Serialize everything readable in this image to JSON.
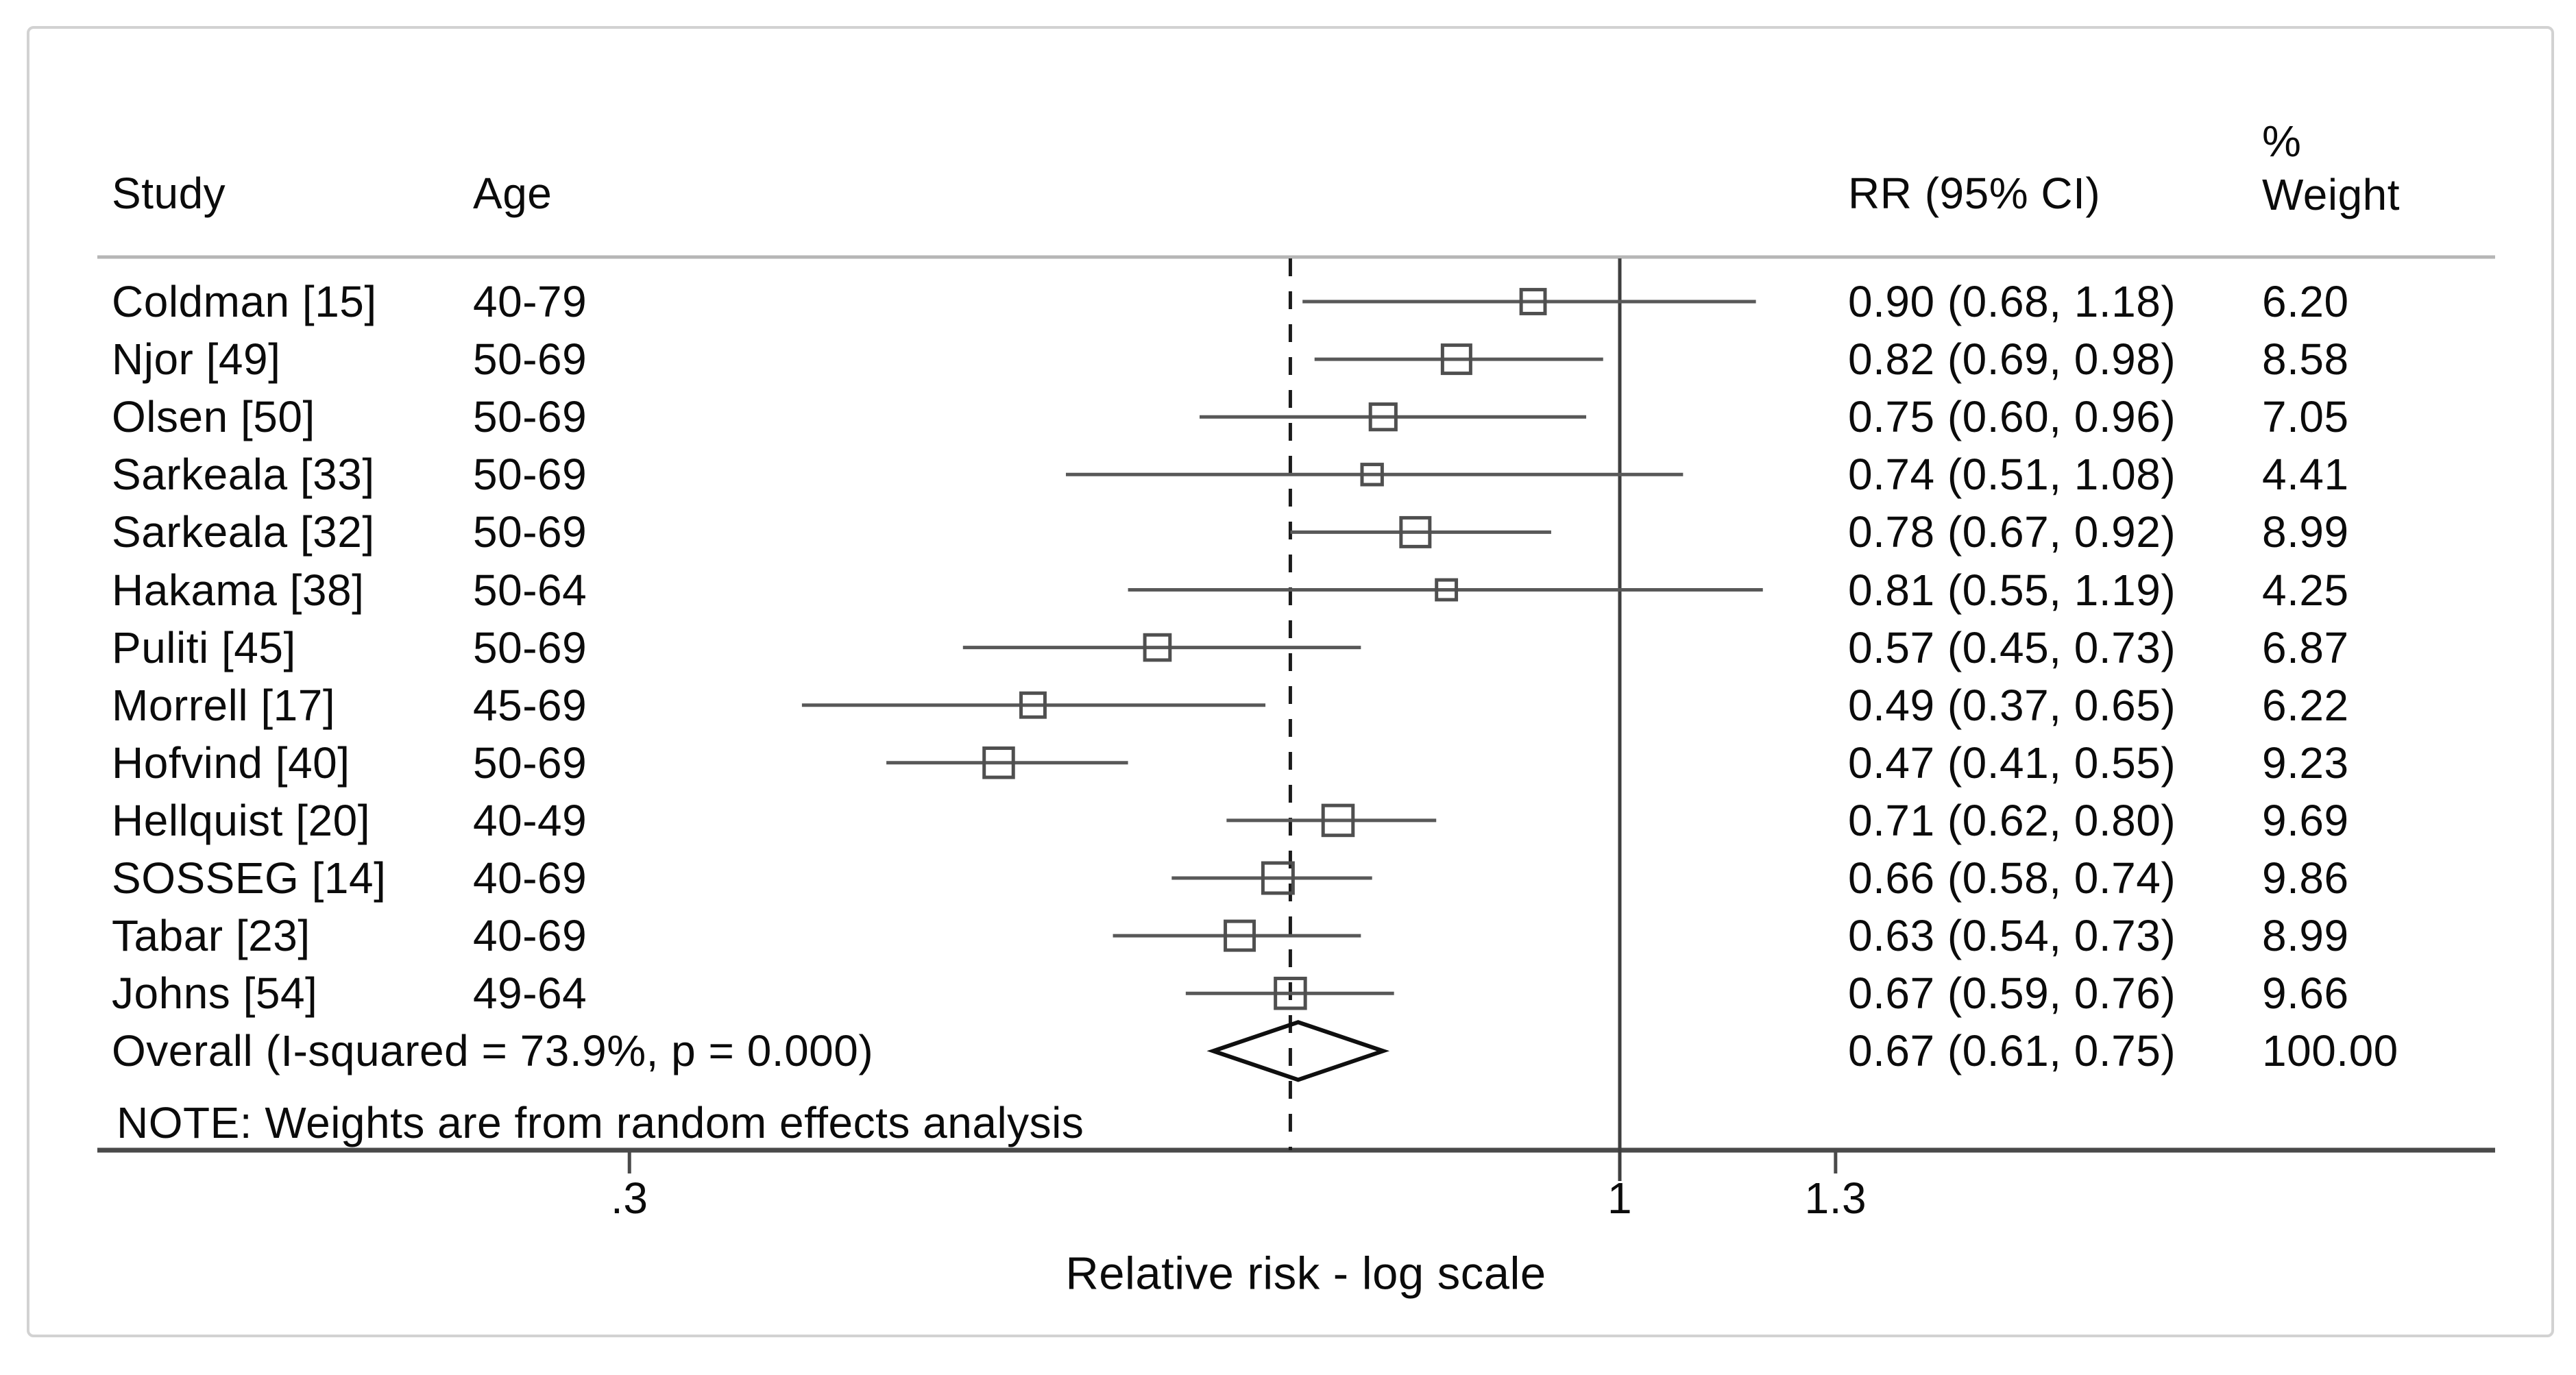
{
  "header": {
    "study": "Study",
    "age": "Age",
    "rr": "RR (95% CI)",
    "weight_pct_sign": "%",
    "weight": "Weight"
  },
  "note": "NOTE: Weights are from random effects analysis",
  "xaxis": {
    "label": "Relative risk - log scale",
    "ticks": [
      {
        "label": ".3",
        "value": 0.3
      },
      {
        "label": "1",
        "value": 1.0
      },
      {
        "label": "1.3",
        "value": 1.3
      }
    ]
  },
  "studies": [
    {
      "name": "Coldman [15]",
      "age": "40-79",
      "rr_text": "0.90 (0.68, 1.18)",
      "weight_text": "6.20",
      "rr": 0.9,
      "lo": 0.68,
      "hi": 1.18,
      "weight": 6.2
    },
    {
      "name": "Njor [49]",
      "age": "50-69",
      "rr_text": "0.82 (0.69, 0.98)",
      "weight_text": "8.58",
      "rr": 0.82,
      "lo": 0.69,
      "hi": 0.98,
      "weight": 8.58
    },
    {
      "name": "Olsen [50]",
      "age": "50-69",
      "rr_text": "0.75 (0.60, 0.96)",
      "weight_text": "7.05",
      "rr": 0.75,
      "lo": 0.6,
      "hi": 0.96,
      "weight": 7.05
    },
    {
      "name": "Sarkeala [33]",
      "age": "50-69",
      "rr_text": "0.74 (0.51, 1.08)",
      "weight_text": "4.41",
      "rr": 0.74,
      "lo": 0.51,
      "hi": 1.08,
      "weight": 4.41
    },
    {
      "name": "Sarkeala [32]",
      "age": "50-69",
      "rr_text": "0.78 (0.67, 0.92)",
      "weight_text": "8.99",
      "rr": 0.78,
      "lo": 0.67,
      "hi": 0.92,
      "weight": 8.99
    },
    {
      "name": "Hakama [38]",
      "age": "50-64",
      "rr_text": "0.81 (0.55, 1.19)",
      "weight_text": "4.25",
      "rr": 0.81,
      "lo": 0.55,
      "hi": 1.19,
      "weight": 4.25
    },
    {
      "name": "Puliti [45]",
      "age": "50-69",
      "rr_text": "0.57 (0.45, 0.73)",
      "weight_text": "6.87",
      "rr": 0.57,
      "lo": 0.45,
      "hi": 0.73,
      "weight": 6.87
    },
    {
      "name": "Morrell [17]",
      "age": "45-69",
      "rr_text": "0.49 (0.37, 0.65)",
      "weight_text": "6.22",
      "rr": 0.49,
      "lo": 0.37,
      "hi": 0.65,
      "weight": 6.22
    },
    {
      "name": "Hofvind [40]",
      "age": "50-69",
      "rr_text": "0.47 (0.41, 0.55)",
      "weight_text": "9.23",
      "rr": 0.47,
      "lo": 0.41,
      "hi": 0.55,
      "weight": 9.23
    },
    {
      "name": "Hellquist [20]",
      "age": "40-49",
      "rr_text": "0.71 (0.62, 0.80)",
      "weight_text": "9.69",
      "rr": 0.71,
      "lo": 0.62,
      "hi": 0.8,
      "weight": 9.69
    },
    {
      "name": "SOSSEG [14]",
      "age": "40-69",
      "rr_text": "0.66 (0.58, 0.74)",
      "weight_text": "9.86",
      "rr": 0.66,
      "lo": 0.58,
      "hi": 0.74,
      "weight": 9.86
    },
    {
      "name": "Tabar [23]",
      "age": "40-69",
      "rr_text": "0.63 (0.54, 0.73)",
      "weight_text": "8.99",
      "rr": 0.63,
      "lo": 0.54,
      "hi": 0.73,
      "weight": 8.99
    },
    {
      "name": "Johns [54]",
      "age": "49-64",
      "rr_text": "0.67 (0.59, 0.76)",
      "weight_text": "9.66",
      "rr": 0.67,
      "lo": 0.59,
      "hi": 0.76,
      "weight": 9.66
    }
  ],
  "overall": {
    "label": "Overall  (I-squared = 73.9%, p = 0.000)",
    "rr_text": "0.67 (0.61, 0.75)",
    "weight_text": "100.00",
    "rr": 0.67,
    "lo": 0.61,
    "hi": 0.75
  },
  "chart_data": {
    "type": "scatter",
    "subtype": "forest-plot",
    "title": "",
    "xlabel": "Relative risk - log scale",
    "x_scale": "log",
    "x_tick_labels": [
      ".3",
      "1",
      "1.3"
    ],
    "x_tick_values": [
      0.3,
      1.0,
      1.3
    ],
    "reference_line_x": 1.0,
    "overall_dashed_line_x": 0.67,
    "legend_position": "none",
    "grid": false,
    "columns": [
      "Study",
      "Age",
      "RR (95% CI)",
      "% Weight"
    ],
    "series": [
      {
        "name": "studies",
        "points": [
          {
            "study": "Coldman [15]",
            "age": "40-79",
            "rr": 0.9,
            "ci": [
              0.68,
              1.18
            ],
            "weight_pct": 6.2
          },
          {
            "study": "Njor [49]",
            "age": "50-69",
            "rr": 0.82,
            "ci": [
              0.69,
              0.98
            ],
            "weight_pct": 8.58
          },
          {
            "study": "Olsen [50]",
            "age": "50-69",
            "rr": 0.75,
            "ci": [
              0.6,
              0.96
            ],
            "weight_pct": 7.05
          },
          {
            "study": "Sarkeala [33]",
            "age": "50-69",
            "rr": 0.74,
            "ci": [
              0.51,
              1.08
            ],
            "weight_pct": 4.41
          },
          {
            "study": "Sarkeala [32]",
            "age": "50-69",
            "rr": 0.78,
            "ci": [
              0.67,
              0.92
            ],
            "weight_pct": 8.99
          },
          {
            "study": "Hakama [38]",
            "age": "50-64",
            "rr": 0.81,
            "ci": [
              0.55,
              1.19
            ],
            "weight_pct": 4.25
          },
          {
            "study": "Puliti [45]",
            "age": "50-69",
            "rr": 0.57,
            "ci": [
              0.45,
              0.73
            ],
            "weight_pct": 6.87
          },
          {
            "study": "Morrell [17]",
            "age": "45-69",
            "rr": 0.49,
            "ci": [
              0.37,
              0.65
            ],
            "weight_pct": 6.22
          },
          {
            "study": "Hofvind [40]",
            "age": "50-69",
            "rr": 0.47,
            "ci": [
              0.41,
              0.55
            ],
            "weight_pct": 9.23
          },
          {
            "study": "Hellquist [20]",
            "age": "40-49",
            "rr": 0.71,
            "ci": [
              0.62,
              0.8
            ],
            "weight_pct": 9.69
          },
          {
            "study": "SOSSEG [14]",
            "age": "40-69",
            "rr": 0.66,
            "ci": [
              0.58,
              0.74
            ],
            "weight_pct": 9.86
          },
          {
            "study": "Tabar [23]",
            "age": "40-69",
            "rr": 0.63,
            "ci": [
              0.54,
              0.73
            ],
            "weight_pct": 8.99
          },
          {
            "study": "Johns [54]",
            "age": "49-64",
            "rr": 0.67,
            "ci": [
              0.59,
              0.76
            ],
            "weight_pct": 9.66
          }
        ]
      }
    ],
    "overall": {
      "rr": 0.67,
      "ci": [
        0.61,
        0.75
      ],
      "weight_pct": 100.0,
      "i_squared_pct": 73.9,
      "p_value": "0.000"
    },
    "annotations": [
      "NOTE: Weights are from random effects analysis"
    ]
  },
  "colors": {
    "text": "#0b0b0b",
    "frame": "#d2d2d2",
    "separator": "#b6b6b6",
    "axis": "#4a4a4a",
    "ci_line": "#585858",
    "square_stroke": "#4f4f4f",
    "ref_line": "#3e3e3e",
    "dashed_line": "#1b1b1b",
    "diamond": "#0f0f0f"
  }
}
